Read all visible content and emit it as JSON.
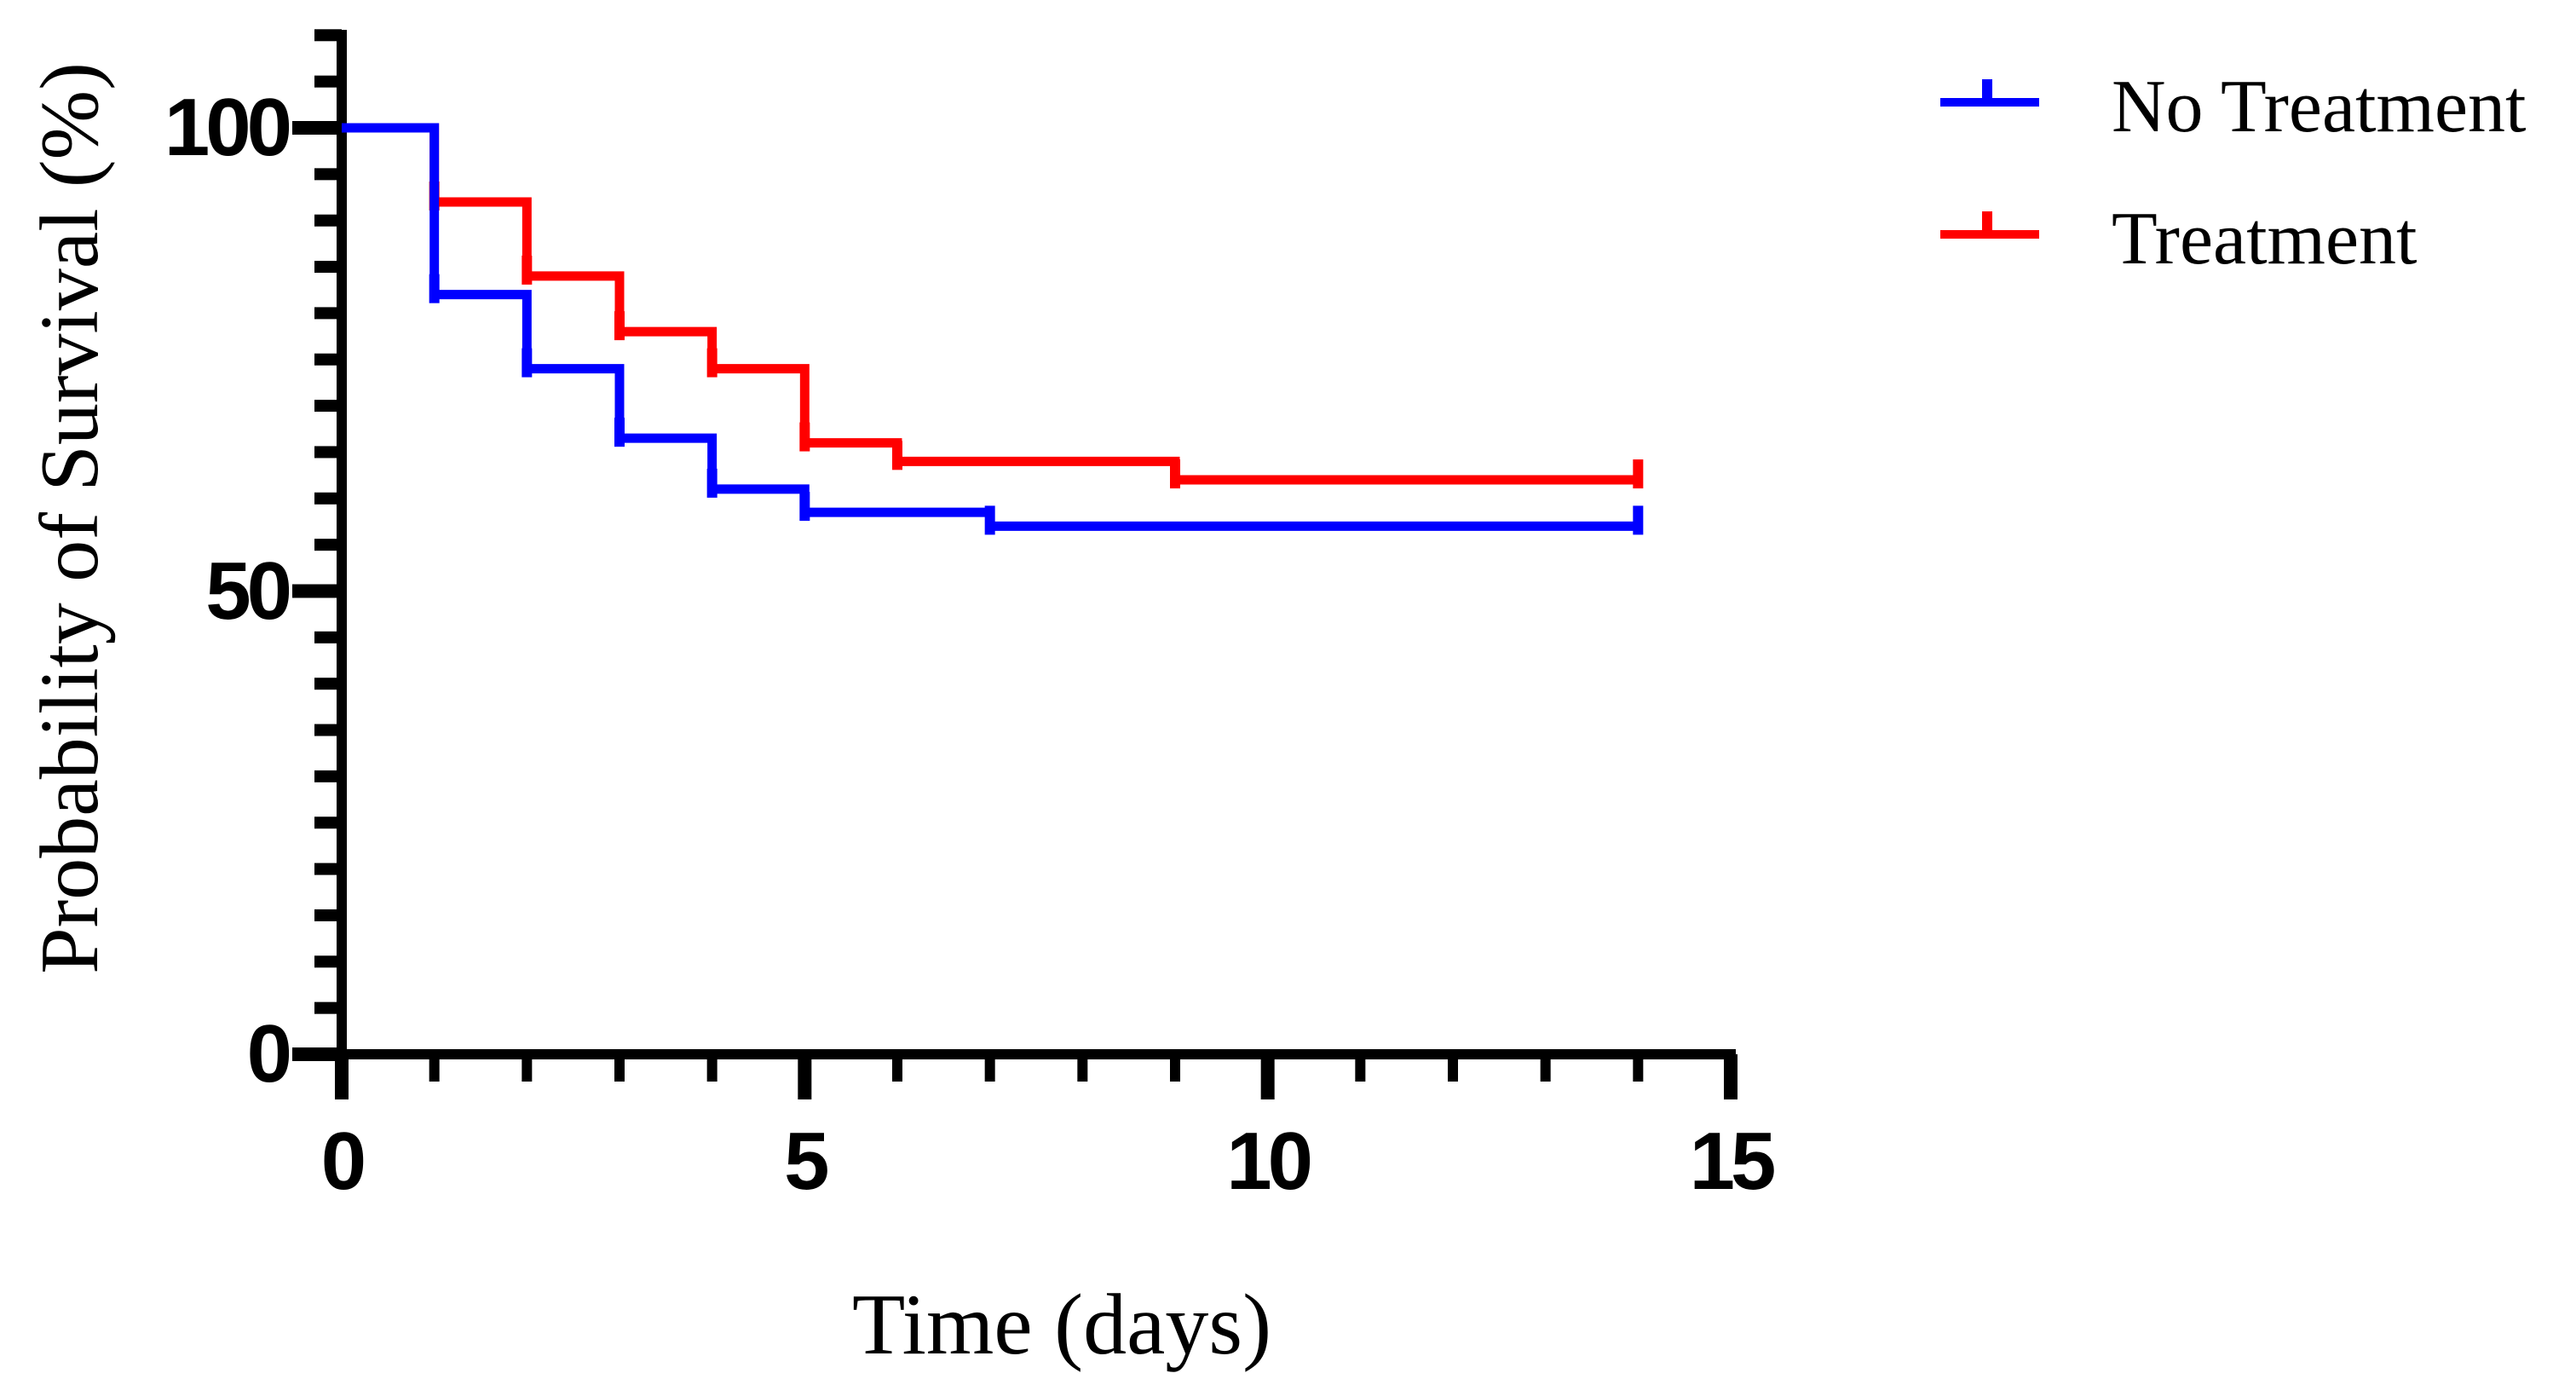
{
  "chart_data": {
    "type": "line",
    "subtype": "kaplan-meier-survival-step",
    "title": "",
    "xlabel": "Time (days)",
    "ylabel": "Probability of Survival (%)",
    "xlim": [
      0,
      15
    ],
    "ylim": [
      0,
      110
    ],
    "x_major_ticks": [
      0,
      5,
      10,
      15
    ],
    "x_minor_tick_step": 1,
    "y_major_ticks": [
      100,
      50,
      0
    ],
    "y_minor_tick_step": 5,
    "grid": false,
    "legend_position": "top-right",
    "axis_color": "#000000",
    "background_color": "#FFFFFF",
    "series": [
      {
        "name": "No Treatment",
        "color": "#0000FF",
        "steps": [
          [
            0,
            100
          ],
          [
            1,
            82
          ],
          [
            2,
            74
          ],
          [
            3,
            66.5
          ],
          [
            4,
            61
          ],
          [
            5,
            58.5
          ],
          [
            7,
            57
          ]
        ],
        "end_time": 14,
        "end_value": 57,
        "event_ticks": [
          [
            1,
            82
          ],
          [
            2,
            74
          ],
          [
            3,
            66.5
          ],
          [
            4,
            61
          ],
          [
            5,
            58.5
          ],
          [
            7,
            57
          ],
          [
            14,
            57
          ]
        ]
      },
      {
        "name": "Treatment",
        "color": "#FF0000",
        "steps": [
          [
            0,
            100
          ],
          [
            1,
            92
          ],
          [
            2,
            84
          ],
          [
            3,
            78
          ],
          [
            4,
            74
          ],
          [
            5,
            66
          ],
          [
            6,
            64
          ],
          [
            9,
            62
          ]
        ],
        "end_time": 14,
        "end_value": 62,
        "event_ticks": [
          [
            1,
            92
          ],
          [
            2,
            84
          ],
          [
            3,
            78
          ],
          [
            4,
            74
          ],
          [
            5,
            66
          ],
          [
            6,
            64
          ],
          [
            9,
            62
          ],
          [
            14,
            62
          ]
        ]
      }
    ]
  },
  "axes": {
    "x_title": "Time (days)",
    "y_title": "Probability of Survival (%)",
    "x_tick_labels": [
      "0",
      "5",
      "10",
      "15"
    ],
    "y_tick_labels": [
      "100",
      "50",
      "0"
    ]
  },
  "legend": {
    "items": [
      {
        "label": "No Treatment",
        "color": "#0000FF"
      },
      {
        "label": "Treatment",
        "color": "#FF0000"
      }
    ]
  }
}
